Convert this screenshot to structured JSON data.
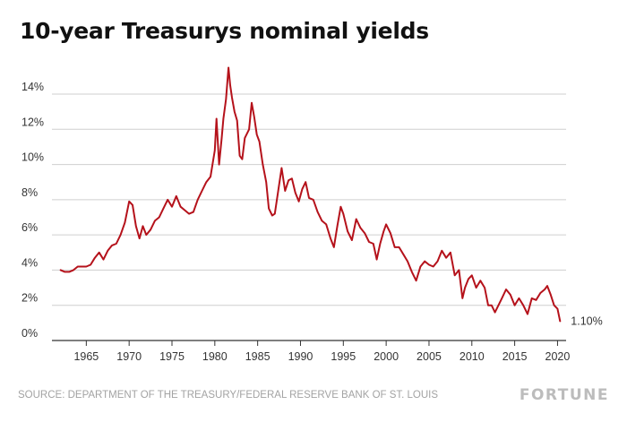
{
  "chart_data": {
    "type": "line",
    "title": "10-year Treasurys nominal yields",
    "xlabel": "",
    "ylabel": "",
    "xlim": [
      1961.2,
      2021.0
    ],
    "ylim": [
      0,
      14
    ],
    "x_ticks": [
      1965,
      1970,
      1975,
      1980,
      1985,
      1990,
      1995,
      2000,
      2005,
      2010,
      2015,
      2020
    ],
    "x_tick_labels": [
      "1965",
      "1970",
      "1975",
      "1980",
      "1985",
      "1990",
      "1995",
      "2000",
      "2005",
      "2010",
      "2015",
      "2020"
    ],
    "y_ticks": [
      0,
      2,
      4,
      6,
      8,
      10,
      12,
      14
    ],
    "y_tick_labels": [
      "0%",
      "2%",
      "4%",
      "6%",
      "8%",
      "10%",
      "12%",
      "14%"
    ],
    "grid": "horizontal",
    "legend": "none",
    "line_color": "#b5121b",
    "end_label": "1.10%",
    "series": [
      {
        "x": [
          1962.0,
          1962.5,
          1963.0,
          1963.5,
          1964.0,
          1964.5,
          1965.0,
          1965.5,
          1966.0,
          1966.5,
          1967.0,
          1967.5,
          1968.0,
          1968.5,
          1969.0,
          1969.5,
          1970.0,
          1970.4,
          1970.8,
          1971.2,
          1971.6,
          1972.0,
          1972.5,
          1973.0,
          1973.5,
          1974.0,
          1974.5,
          1975.0,
          1975.5,
          1976.0,
          1976.5,
          1977.0,
          1977.5,
          1978.0,
          1978.5,
          1979.0,
          1979.5,
          1980.0,
          1980.2,
          1980.5,
          1980.8,
          1981.0,
          1981.3,
          1981.6,
          1981.8,
          1982.0,
          1982.3,
          1982.6,
          1982.9,
          1983.2,
          1983.5,
          1984.0,
          1984.3,
          1984.6,
          1984.9,
          1985.2,
          1985.6,
          1986.0,
          1986.3,
          1986.7,
          1987.0,
          1987.4,
          1987.8,
          1988.2,
          1988.6,
          1989.0,
          1989.4,
          1989.8,
          1990.2,
          1990.6,
          1991.0,
          1991.5,
          1992.0,
          1992.5,
          1993.0,
          1993.5,
          1993.9,
          1994.3,
          1994.7,
          1995.0,
          1995.5,
          1996.0,
          1996.5,
          1997.0,
          1997.5,
          1998.0,
          1998.5,
          1998.9,
          1999.3,
          1999.7,
          2000.0,
          2000.5,
          2001.0,
          2001.5,
          2002.0,
          2002.5,
          2003.0,
          2003.5,
          2004.0,
          2004.5,
          2005.0,
          2005.5,
          2006.0,
          2006.5,
          2007.0,
          2007.5,
          2008.0,
          2008.5,
          2008.9,
          2009.2,
          2009.6,
          2010.0,
          2010.5,
          2011.0,
          2011.5,
          2011.9,
          2012.3,
          2012.7,
          2013.0,
          2013.5,
          2014.0,
          2014.5,
          2015.0,
          2015.5,
          2016.0,
          2016.5,
          2017.0,
          2017.5,
          2018.0,
          2018.5,
          2018.8,
          2019.2,
          2019.6,
          2020.0,
          2020.3
        ],
        "y": [
          4.0,
          3.9,
          3.9,
          4.0,
          4.2,
          4.2,
          4.2,
          4.3,
          4.7,
          5.0,
          4.6,
          5.1,
          5.4,
          5.5,
          6.0,
          6.7,
          7.9,
          7.7,
          6.5,
          5.8,
          6.5,
          6.0,
          6.3,
          6.8,
          7.0,
          7.5,
          8.0,
          7.6,
          8.2,
          7.6,
          7.4,
          7.2,
          7.3,
          8.0,
          8.5,
          9.0,
          9.3,
          10.8,
          12.6,
          10.0,
          11.5,
          12.6,
          13.7,
          15.5,
          14.5,
          13.8,
          13.0,
          12.5,
          10.5,
          10.3,
          11.5,
          12.0,
          13.5,
          12.7,
          11.7,
          11.3,
          10.0,
          9.0,
          7.5,
          7.1,
          7.2,
          8.5,
          9.8,
          8.5,
          9.1,
          9.2,
          8.4,
          7.9,
          8.6,
          9.0,
          8.1,
          8.0,
          7.3,
          6.8,
          6.6,
          5.8,
          5.3,
          6.5,
          7.6,
          7.2,
          6.2,
          5.7,
          6.9,
          6.4,
          6.1,
          5.6,
          5.5,
          4.6,
          5.5,
          6.2,
          6.6,
          6.1,
          5.3,
          5.3,
          4.9,
          4.5,
          3.9,
          3.4,
          4.2,
          4.5,
          4.3,
          4.2,
          4.5,
          5.1,
          4.7,
          5.0,
          3.7,
          4.0,
          2.4,
          3.0,
          3.5,
          3.7,
          3.0,
          3.4,
          3.0,
          2.0,
          2.0,
          1.6,
          1.9,
          2.4,
          2.9,
          2.6,
          2.0,
          2.4,
          2.0,
          1.5,
          2.4,
          2.3,
          2.7,
          2.9,
          3.1,
          2.6,
          2.0,
          1.8,
          1.1
        ]
      }
    ]
  },
  "footer": {
    "source": "SOURCE: DEPARTMENT OF THE TREASURY/FEDERAL RESERVE BANK OF ST. LOUIS",
    "brand": "FORTUNE"
  }
}
